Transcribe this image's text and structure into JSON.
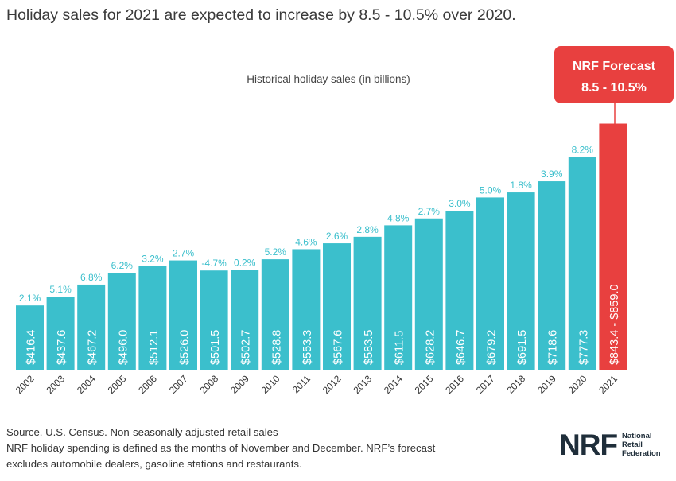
{
  "headline": "Holiday sales for 2021 are expected to increase by 8.5 - 10.5% over 2020.",
  "colors": {
    "bar": "#3bbfcc",
    "forecast": "#e8403f",
    "text": "#333333"
  },
  "chart_data": {
    "type": "bar",
    "title": "Historical holiday sales (in billions)",
    "categories": [
      "2002",
      "2003",
      "2004",
      "2005",
      "2006",
      "2007",
      "2008",
      "2009",
      "2010",
      "2011",
      "2012",
      "2013",
      "2014",
      "2015",
      "2016",
      "2017",
      "2018",
      "2019",
      "2020",
      "2021"
    ],
    "values": [
      416.4,
      437.6,
      467.2,
      496.0,
      512.1,
      526.0,
      501.5,
      502.7,
      528.8,
      553.3,
      567.6,
      583.5,
      611.5,
      628.2,
      646.7,
      679.2,
      691.5,
      718.6,
      777.3,
      859.0
    ],
    "value_labels": [
      "$416.4",
      "$437.6",
      "$467.2",
      "$496.0",
      "$512.1",
      "$526.0",
      "$501.5",
      "$502.7",
      "$528.8",
      "$553.3",
      "$567.6",
      "$583.5",
      "$611.5",
      "$628.2",
      "$646.7",
      "$679.2",
      "$691.5",
      "$718.6",
      "$777.3",
      "$843.4 - $859.0"
    ],
    "growth_labels": [
      "2.1%",
      "5.1%",
      "6.8%",
      "6.2%",
      "3.2%",
      "2.7%",
      "-4.7%",
      "0.2%",
      "5.2%",
      "4.6%",
      "2.6%",
      "2.8%",
      "4.8%",
      "2.7%",
      "3.0%",
      "5.0%",
      "1.8%",
      "3.9%",
      "8.2%",
      ""
    ],
    "forecast_range": [
      843.4,
      859.0
    ],
    "ylim": [
      260,
      860
    ],
    "grid": false,
    "callout": {
      "title": "NRF Forecast",
      "range": "8.5 - 10.5%"
    }
  },
  "footer": {
    "line1": "Source. U.S. Census. Non-seasonally adjusted retail sales",
    "line2": "NRF holiday spending is defined as the months of November and December. NRF’s forecast",
    "line3": "excludes automobile dealers, gasoline stations and restaurants."
  },
  "logo": {
    "mark": "NRF",
    "line1": "National",
    "line2": "Retail",
    "line3": "Federation"
  }
}
